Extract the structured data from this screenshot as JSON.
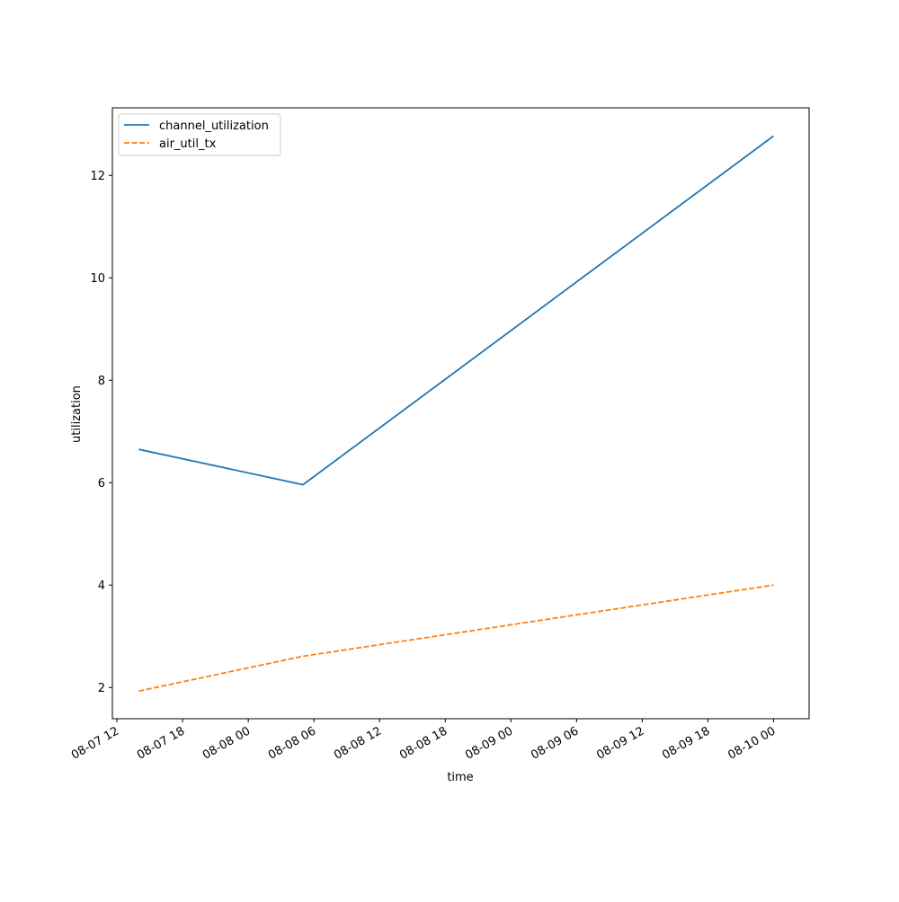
{
  "chart_data": {
    "type": "line",
    "x_label": "time",
    "y_label": "utilization",
    "x": [
      "08-07 14",
      "08-08 05",
      "08-10 00"
    ],
    "series": [
      {
        "name": "channel_utilization",
        "color": "#1f77b4",
        "dash": "solid",
        "values": [
          6.65,
          5.96,
          12.77
        ]
      },
      {
        "name": "air_util_tx",
        "color": "#ff7f0e",
        "dash": "dashed",
        "values": [
          1.93,
          2.61,
          4.0
        ]
      }
    ],
    "xlim": [
      "08-07 11:35",
      "08-10 03:15"
    ],
    "xticks": [
      "08-07 12",
      "08-07 18",
      "08-08 00",
      "08-08 06",
      "08-08 12",
      "08-08 18",
      "08-09 00",
      "08-09 06",
      "08-09 12",
      "08-09 18",
      "08-10 00"
    ],
    "ylim": [
      1.39,
      13.32
    ],
    "yticks": [
      2,
      4,
      6,
      8,
      10,
      12
    ],
    "grid": false,
    "legend": "upper-left"
  }
}
